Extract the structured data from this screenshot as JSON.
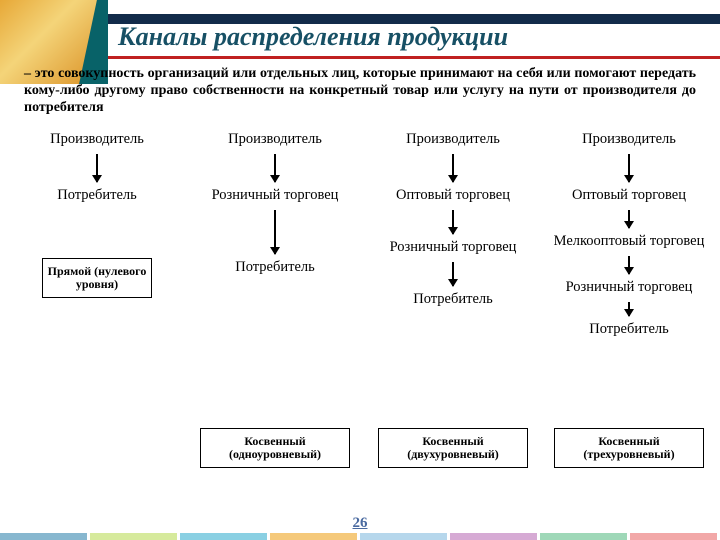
{
  "title": "Каналы распределения продукции",
  "definition": "– это совокупность организаций или отдельных лиц, которые принимают на себя или помогают передать кому-либо другому право собственности на конкретный товар или услугу на пути от производителя до потребителя",
  "columns": [
    {
      "nodes": [
        "Производитель",
        "Потребитель"
      ],
      "caption": "Прямой (нулевого уровня)",
      "caption_style": "small",
      "arrow_h": [
        28
      ]
    },
    {
      "nodes": [
        "Производитель",
        "Розничный торговец",
        "Потребитель"
      ],
      "caption": "Косвенный (одноуровневый)",
      "caption_style": "wide",
      "arrow_h": [
        28,
        44
      ]
    },
    {
      "nodes": [
        "Производитель",
        "Оптовый торговец",
        "Розничный торговец",
        "Потребитель"
      ],
      "caption": "Косвенный (двухуровневый)",
      "caption_style": "wide",
      "arrow_h": [
        28,
        24,
        24
      ]
    },
    {
      "nodes": [
        "Производитель",
        "Оптовый торговец",
        "Мелкооптовый торговец",
        "Розничный торговец",
        "Потребитель"
      ],
      "caption": "Косвенный (трехуровневый)",
      "caption_style": "wide",
      "arrow_h": [
        28,
        18,
        18,
        14
      ]
    }
  ],
  "page_number": "26",
  "colors": {
    "title": "#175065",
    "underline": "#c02020",
    "header_bar": "#122b4a",
    "footer": [
      "#87b7cf",
      "#d6ea9c",
      "#8ad0e3",
      "#f5c97b",
      "#b6d7ec",
      "#d6aad4",
      "#9fd8b8",
      "#f2a8a8"
    ]
  }
}
